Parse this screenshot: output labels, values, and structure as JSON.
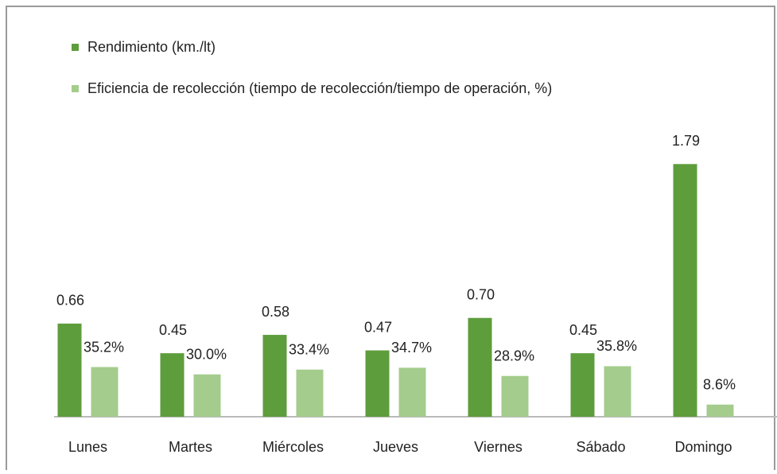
{
  "chart_data": {
    "type": "bar",
    "categories": [
      "Lunes",
      "Martes",
      "Miércoles",
      "Jueves",
      "Viernes",
      "Sábado",
      "Domingo"
    ],
    "series": [
      {
        "name": "Rendimiento (km./lt)",
        "color": "#5e9d3c",
        "values": [
          0.66,
          0.45,
          0.58,
          0.47,
          0.7,
          0.45,
          1.79
        ],
        "value_labels": [
          "0.66",
          "0.45",
          "0.58",
          "0.47",
          "0.70",
          "0.45",
          "1.79"
        ]
      },
      {
        "name": "Eficiencia de recolección (tiempo de recolección/tiempo de operación, %)",
        "color": "#a4cc8c",
        "axis": "y2",
        "values": [
          35.2,
          30.0,
          33.4,
          34.7,
          28.9,
          35.8,
          8.6
        ],
        "value_labels": [
          "35.2%",
          "30.0%",
          "33.4%",
          "34.7%",
          "28.9%",
          "35.8%",
          "8.6%"
        ]
      }
    ],
    "ylim": [
      0,
      2
    ],
    "y2lim": [
      0,
      200
    ],
    "legend": "top-left"
  }
}
